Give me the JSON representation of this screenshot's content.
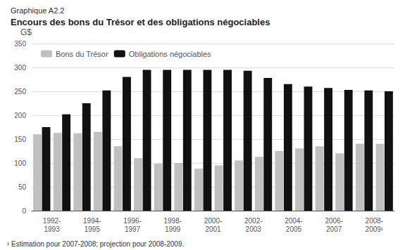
{
  "chart_data": {
    "type": "bar",
    "subtitle": "Graphique A2.2",
    "title": "Encours des bons du Trésor et des obligations négociables",
    "ylabel": "G$",
    "annotations": [
      "¹ Estimation pour 2007-2008; projection pour 2008-2009."
    ],
    "categories": [
      "1992-\n1993",
      null,
      "1994-\n1995",
      null,
      "1996-\n1997",
      null,
      "1998-\n1999",
      null,
      "2000-\n2001",
      null,
      "2002-\n2003",
      null,
      "2004-\n2005",
      null,
      "2006-\n2007",
      null,
      "2008-\n2009¹",
      null
    ],
    "series": [
      {
        "name": "Bons du Trésor",
        "color": "#c0c0c0",
        "values": [
          160,
          163,
          162,
          165,
          135,
          110,
          98,
          100,
          88,
          95,
          105,
          113,
          125,
          130,
          135,
          120,
          140,
          140
        ]
      },
      {
        "name": "Obligations négociables",
        "color": "#111111",
        "values": [
          175,
          202,
          225,
          252,
          280,
          295,
          295,
          295,
          295,
          295,
          293,
          278,
          265,
          260,
          257,
          253,
          252,
          250
        ]
      }
    ],
    "ylim": [
      0,
      350
    ],
    "yticks": [
      0,
      50,
      100,
      150,
      200,
      250,
      300,
      350
    ],
    "grid": true,
    "legend": "upper left"
  }
}
